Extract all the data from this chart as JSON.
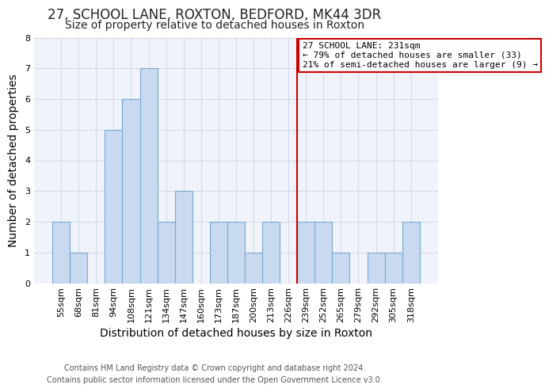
{
  "title": "27, SCHOOL LANE, ROXTON, BEDFORD, MK44 3DR",
  "subtitle": "Size of property relative to detached houses in Roxton",
  "xlabel": "Distribution of detached houses by size in Roxton",
  "ylabel": "Number of detached properties",
  "bar_labels": [
    "55sqm",
    "68sqm",
    "81sqm",
    "94sqm",
    "108sqm",
    "121sqm",
    "134sqm",
    "147sqm",
    "160sqm",
    "173sqm",
    "187sqm",
    "200sqm",
    "213sqm",
    "226sqm",
    "239sqm",
    "252sqm",
    "265sqm",
    "279sqm",
    "292sqm",
    "305sqm",
    "318sqm"
  ],
  "bar_values": [
    2,
    1,
    0,
    5,
    6,
    7,
    2,
    3,
    0,
    2,
    2,
    1,
    2,
    0,
    2,
    2,
    1,
    0,
    1,
    1,
    2
  ],
  "bar_color": "#c8d9f0",
  "bar_edge_color": "#7aaad0",
  "vline_x_index": 13.5,
  "vline_color": "#cc0000",
  "annotation_title": "27 SCHOOL LANE: 231sqm",
  "annotation_line1": "← 79% of detached houses are smaller (33)",
  "annotation_line2": "21% of semi-detached houses are larger (9) →",
  "annotation_box_color": "#ffffff",
  "annotation_border_color": "#cc0000",
  "ylim": [
    0,
    8
  ],
  "yticks": [
    0,
    1,
    2,
    3,
    4,
    5,
    6,
    7,
    8
  ],
  "footer_line1": "Contains HM Land Registry data © Crown copyright and database right 2024.",
  "footer_line2": "Contains public sector information licensed under the Open Government Licence v3.0.",
  "title_fontsize": 12,
  "subtitle_fontsize": 10,
  "axis_label_fontsize": 10,
  "tick_fontsize": 8,
  "footer_fontsize": 7,
  "annotation_fontsize": 8
}
